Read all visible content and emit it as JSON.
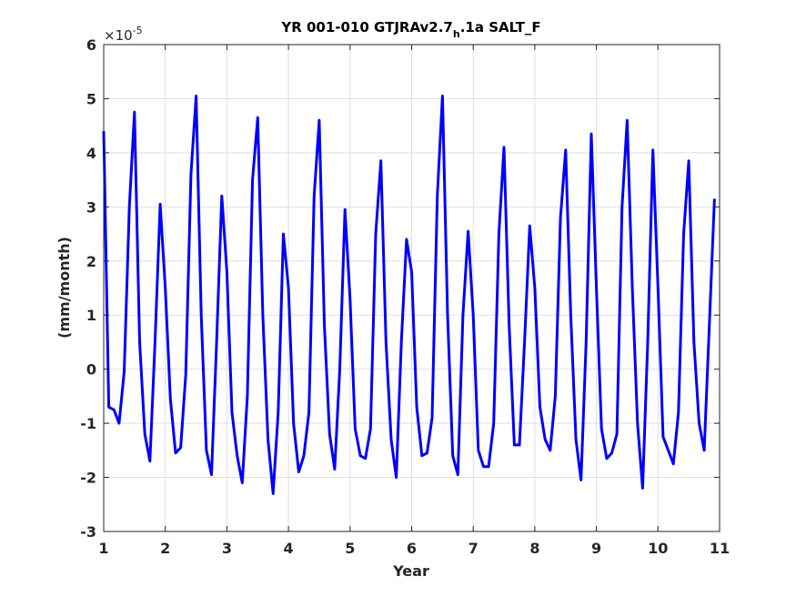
{
  "chart_data": {
    "type": "line",
    "title": {
      "prefix": "YR 001-010 GTJRAv2.7",
      "subscript": "h",
      "suffix": ".1a SALT_F"
    },
    "xlabel": "Year",
    "ylabel": "(mm/month)",
    "y_exponent_label": "×10",
    "y_exponent_power": "-5",
    "xlim": [
      1,
      11
    ],
    "ylim": [
      -3,
      6
    ],
    "xticks": [
      1,
      2,
      3,
      4,
      5,
      6,
      7,
      8,
      9,
      10,
      11
    ],
    "yticks": [
      -3,
      -2,
      -1,
      0,
      1,
      2,
      3,
      4,
      5,
      6
    ],
    "grid": true,
    "series": [
      {
        "color": "#0000ff",
        "x": [
          1.0,
          1.083,
          1.167,
          1.25,
          1.333,
          1.417,
          1.5,
          1.583,
          1.667,
          1.75,
          1.833,
          1.917,
          2.0,
          2.083,
          2.167,
          2.25,
          2.333,
          2.417,
          2.5,
          2.583,
          2.667,
          2.75,
          2.833,
          2.917,
          3.0,
          3.083,
          3.167,
          3.25,
          3.333,
          3.417,
          3.5,
          3.583,
          3.667,
          3.75,
          3.833,
          3.917,
          4.0,
          4.083,
          4.167,
          4.25,
          4.333,
          4.417,
          4.5,
          4.583,
          4.667,
          4.75,
          4.833,
          4.917,
          5.0,
          5.083,
          5.167,
          5.25,
          5.333,
          5.417,
          5.5,
          5.583,
          5.667,
          5.75,
          5.833,
          5.917,
          6.0,
          6.083,
          6.167,
          6.25,
          6.333,
          6.417,
          6.5,
          6.583,
          6.667,
          6.75,
          6.833,
          6.917,
          7.0,
          7.083,
          7.167,
          7.25,
          7.333,
          7.417,
          7.5,
          7.583,
          7.667,
          7.75,
          7.833,
          7.917,
          8.0,
          8.083,
          8.167,
          8.25,
          8.333,
          8.417,
          8.5,
          8.583,
          8.667,
          8.75,
          8.833,
          8.917,
          9.0,
          9.083,
          9.167,
          9.25,
          9.333,
          9.417,
          9.5,
          9.583,
          9.667,
          9.75,
          9.833,
          9.917,
          10.0,
          10.083,
          10.167,
          10.25,
          10.333,
          10.417,
          10.5,
          10.583,
          10.667,
          10.75,
          10.833,
          10.917
        ],
        "y": [
          4.4,
          -0.7,
          -0.75,
          -1.0,
          -0.05,
          3.0,
          4.75,
          0.5,
          -1.2,
          -1.7,
          0.5,
          3.05,
          1.5,
          -0.55,
          -1.55,
          -1.45,
          -0.1,
          3.6,
          5.05,
          1.0,
          -1.5,
          -1.95,
          0.5,
          3.2,
          1.8,
          -0.8,
          -1.6,
          -2.1,
          -0.5,
          3.5,
          4.65,
          1.0,
          -1.3,
          -2.3,
          -0.8,
          2.5,
          1.5,
          -1.0,
          -1.9,
          -1.6,
          -0.8,
          3.2,
          4.6,
          0.8,
          -1.2,
          -1.85,
          0.0,
          2.95,
          1.3,
          -1.1,
          -1.6,
          -1.65,
          -1.1,
          2.5,
          3.85,
          0.5,
          -1.3,
          -2.0,
          0.5,
          2.4,
          1.8,
          -0.7,
          -1.6,
          -1.55,
          -0.9,
          3.2,
          5.05,
          1.0,
          -1.6,
          -1.95,
          1.0,
          2.55,
          1.0,
          -1.5,
          -1.8,
          -1.8,
          -1.0,
          2.5,
          4.1,
          0.8,
          -1.4,
          -1.4,
          0.5,
          2.65,
          1.5,
          -0.7,
          -1.3,
          -1.5,
          -0.5,
          2.8,
          4.05,
          1.0,
          -1.3,
          -2.05,
          0.5,
          4.35,
          1.5,
          -1.1,
          -1.65,
          -1.55,
          -1.2,
          3.0,
          4.6,
          1.5,
          -1.0,
          -2.2,
          0.5,
          4.05,
          1.5,
          -1.25,
          -1.5,
          -1.75,
          -0.8,
          2.5,
          3.85,
          0.5,
          -1.0,
          -1.5,
          0.8,
          3.15
        ]
      }
    ]
  }
}
